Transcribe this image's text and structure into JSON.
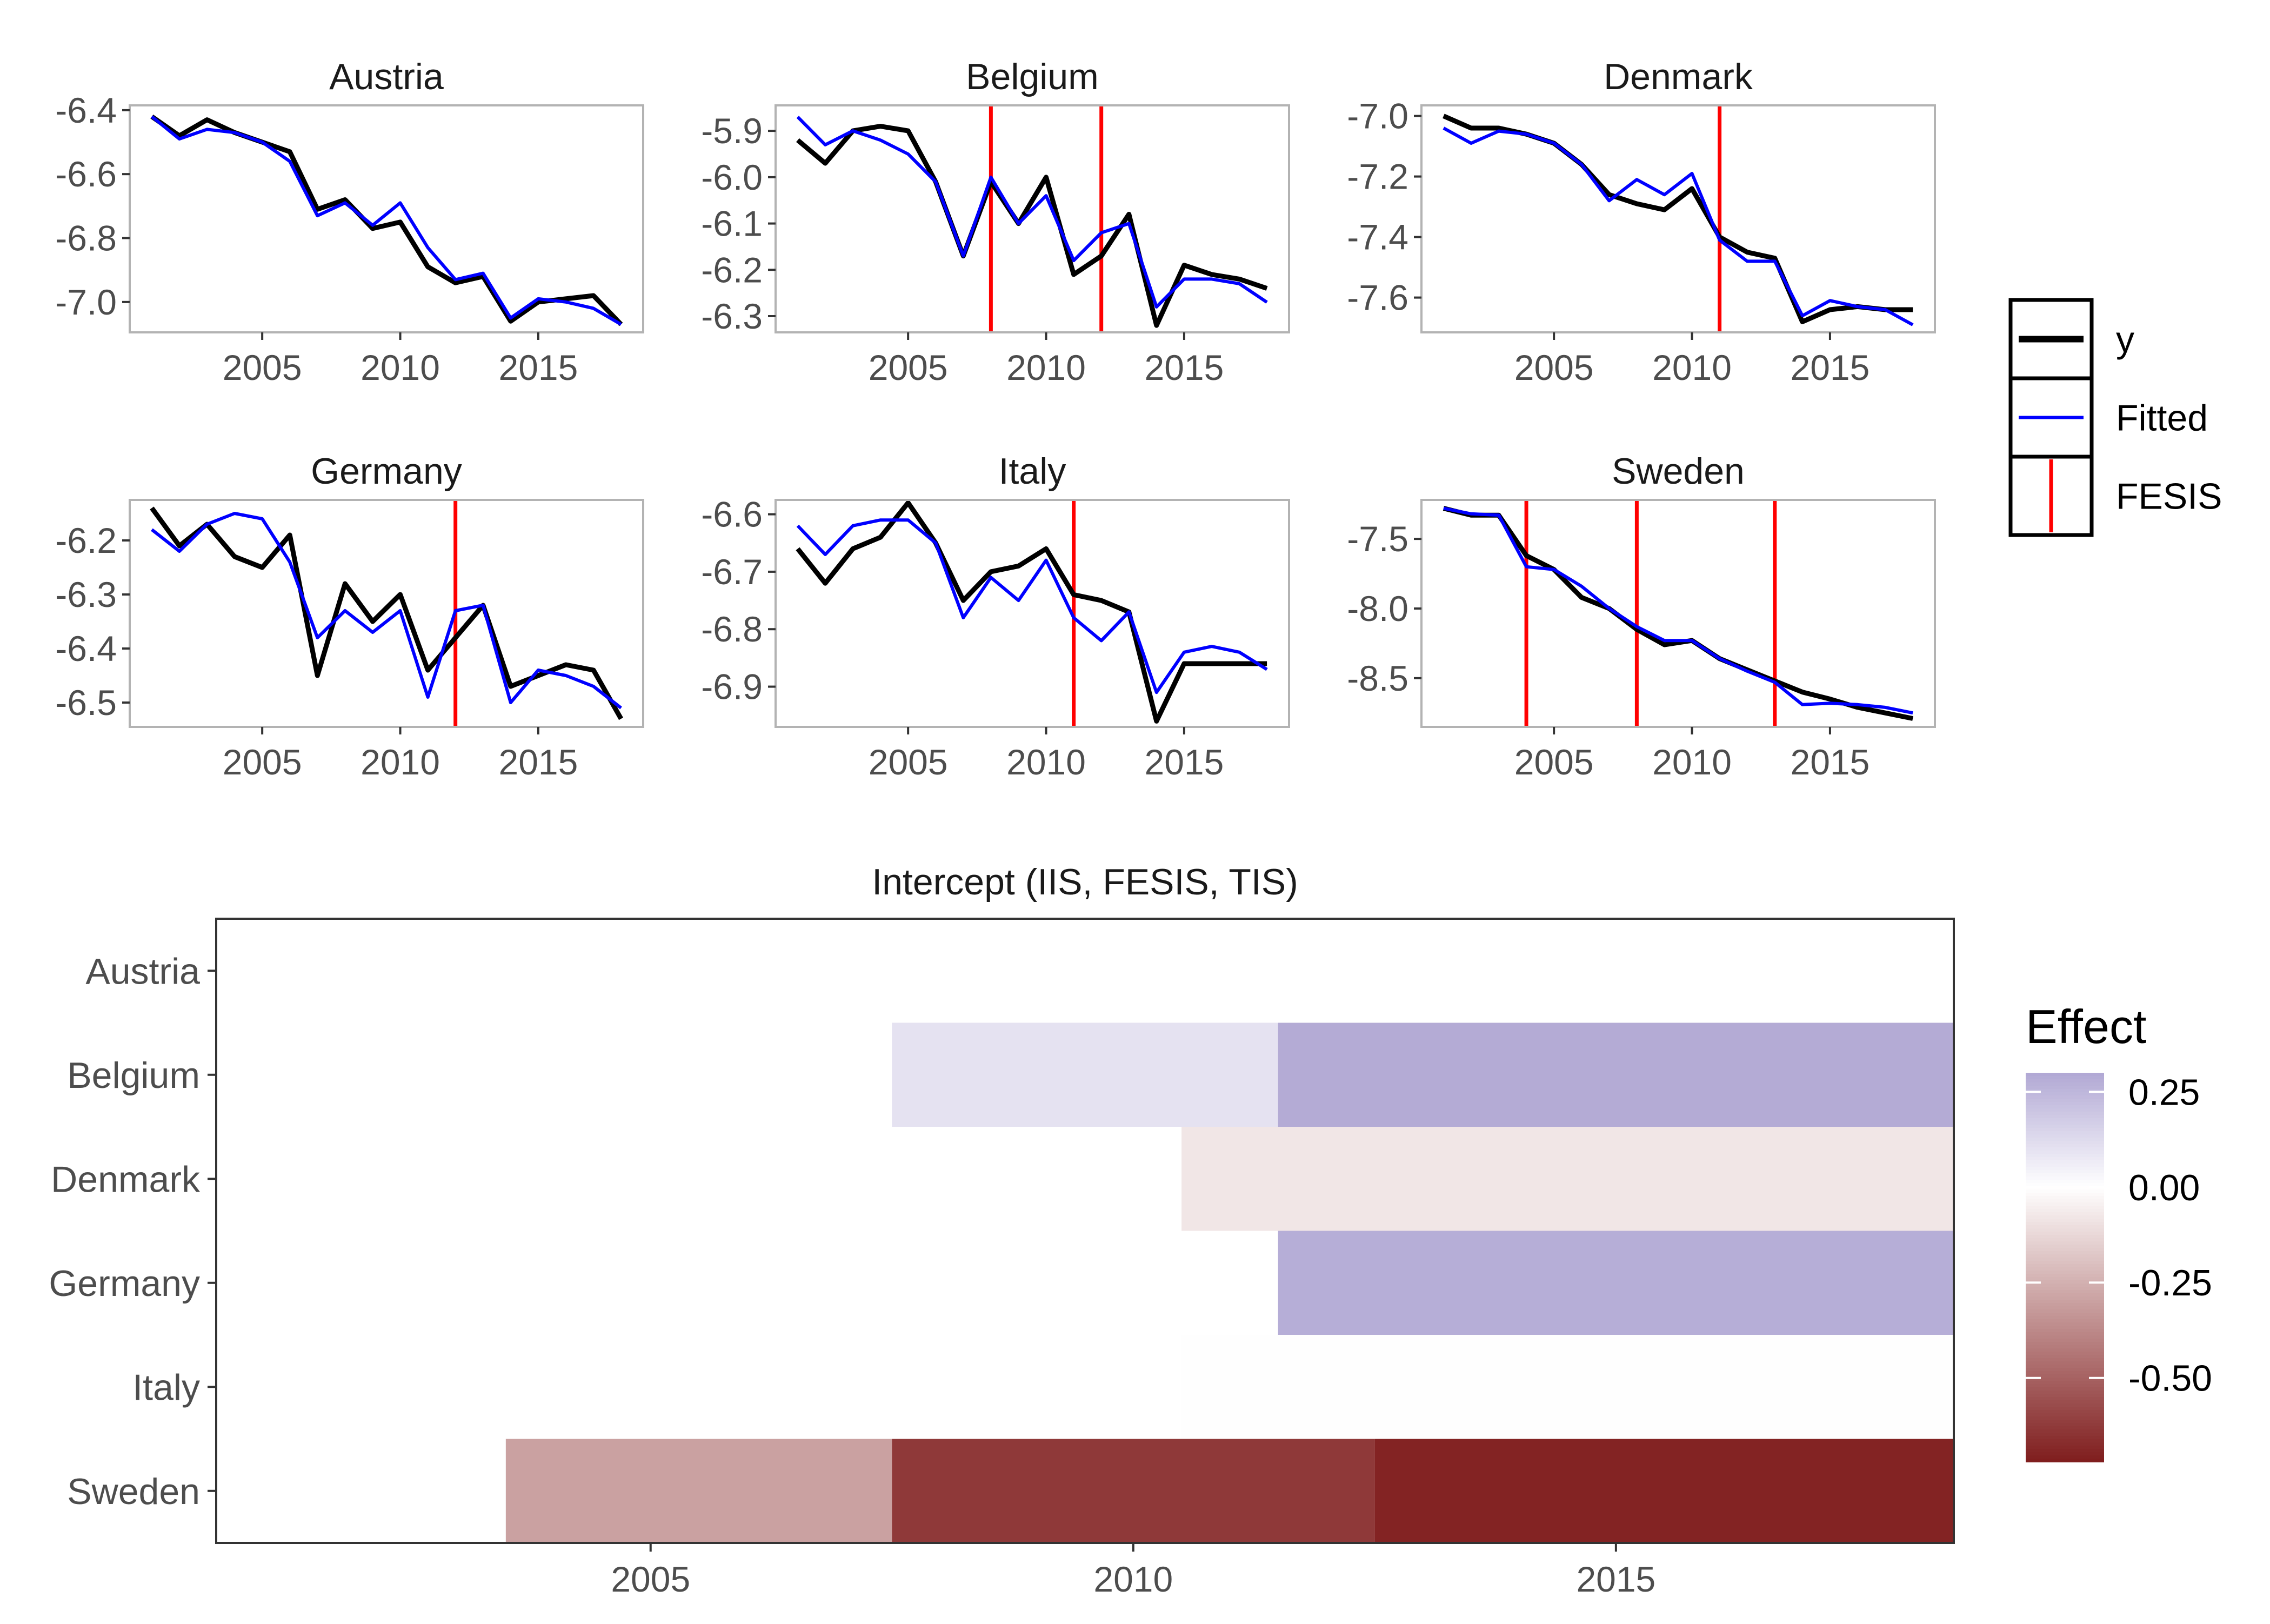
{
  "chart_data": [
    {
      "type": "line",
      "title": "Austria",
      "xticks": [
        2005,
        2010,
        2015
      ],
      "yticks": [
        -6.4,
        -6.6,
        -6.8,
        -7.0
      ],
      "ytick_labels": [
        "-6.4",
        "-6.6",
        "-6.8",
        "-7.0"
      ],
      "xlim": [
        2000.2,
        2018.8
      ],
      "ylim": [
        -7.095,
        -6.385
      ],
      "fesis": [],
      "series": [
        {
          "name": "y",
          "color": "#000000",
          "x": [
            2001,
            2002,
            2003,
            2004,
            2005,
            2006,
            2007,
            2008,
            2009,
            2010,
            2011,
            2012,
            2013,
            2014,
            2015,
            2016,
            2017,
            2018
          ],
          "values": [
            -6.42,
            -6.48,
            -6.43,
            -6.47,
            -6.5,
            -6.53,
            -6.71,
            -6.68,
            -6.77,
            -6.75,
            -6.89,
            -6.94,
            -6.92,
            -7.06,
            -7.0,
            -6.99,
            -6.98,
            -7.07
          ]
        },
        {
          "name": "Fitted",
          "color": "#0000ff",
          "x": [
            2001,
            2002,
            2003,
            2004,
            2005,
            2006,
            2007,
            2008,
            2009,
            2010,
            2011,
            2012,
            2013,
            2014,
            2015,
            2016,
            2017,
            2018
          ],
          "values": [
            -6.42,
            -6.49,
            -6.46,
            -6.47,
            -6.5,
            -6.56,
            -6.73,
            -6.69,
            -6.76,
            -6.69,
            -6.83,
            -6.93,
            -6.91,
            -7.05,
            -6.99,
            -7.0,
            -7.02,
            -7.07
          ]
        }
      ]
    },
    {
      "type": "line",
      "title": "Belgium",
      "xticks": [
        2005,
        2010,
        2015
      ],
      "yticks": [
        -5.9,
        -6.0,
        -6.1,
        -6.2,
        -6.3
      ],
      "ytick_labels": [
        "-5.9",
        "-6.0",
        "-6.1",
        "-6.2",
        "-6.3"
      ],
      "xlim": [
        2000.2,
        2018.8
      ],
      "ylim": [
        -6.335,
        -5.845
      ],
      "fesis": [
        2008,
        2012
      ],
      "series": [
        {
          "name": "y",
          "color": "#000000",
          "x": [
            2001,
            2002,
            2003,
            2004,
            2005,
            2006,
            2007,
            2008,
            2009,
            2010,
            2011,
            2012,
            2013,
            2014,
            2015,
            2016,
            2017,
            2018
          ],
          "values": [
            -5.92,
            -5.97,
            -5.9,
            -5.89,
            -5.9,
            -6.01,
            -6.17,
            -6.01,
            -6.1,
            -6.0,
            -6.21,
            -6.17,
            -6.08,
            -6.32,
            -6.19,
            -6.21,
            -6.22,
            -6.24
          ]
        },
        {
          "name": "Fitted",
          "color": "#0000ff",
          "x": [
            2001,
            2002,
            2003,
            2004,
            2005,
            2006,
            2007,
            2008,
            2009,
            2010,
            2011,
            2012,
            2013,
            2014,
            2015,
            2016,
            2017,
            2018
          ],
          "values": [
            -5.87,
            -5.93,
            -5.9,
            -5.92,
            -5.95,
            -6.01,
            -6.17,
            -6.0,
            -6.1,
            -6.04,
            -6.18,
            -6.12,
            -6.1,
            -6.28,
            -6.22,
            -6.22,
            -6.23,
            -6.27
          ]
        }
      ]
    },
    {
      "type": "line",
      "title": "Denmark",
      "xticks": [
        2005,
        2010,
        2015
      ],
      "yticks": [
        -7.0,
        -7.2,
        -7.4,
        -7.6
      ],
      "ytick_labels": [
        "-7.0",
        "-7.2",
        "-7.4",
        "-7.6"
      ],
      "xlim": [
        2000.2,
        2018.8
      ],
      "ylim": [
        -7.715,
        -6.965
      ],
      "fesis": [
        2011
      ],
      "series": [
        {
          "name": "y",
          "color": "#000000",
          "x": [
            2001,
            2002,
            2003,
            2004,
            2005,
            2006,
            2007,
            2008,
            2009,
            2010,
            2011,
            2012,
            2013,
            2014,
            2015,
            2016,
            2017,
            2018
          ],
          "values": [
            -7.0,
            -7.04,
            -7.04,
            -7.06,
            -7.09,
            -7.16,
            -7.26,
            -7.29,
            -7.31,
            -7.24,
            -7.4,
            -7.45,
            -7.47,
            -7.68,
            -7.64,
            -7.63,
            -7.64,
            -7.64
          ]
        },
        {
          "name": "Fitted",
          "color": "#0000ff",
          "x": [
            2001,
            2002,
            2003,
            2004,
            2005,
            2006,
            2007,
            2008,
            2009,
            2010,
            2011,
            2012,
            2013,
            2014,
            2015,
            2016,
            2017,
            2018
          ],
          "values": [
            -7.04,
            -7.09,
            -7.05,
            -7.06,
            -7.09,
            -7.16,
            -7.28,
            -7.21,
            -7.26,
            -7.19,
            -7.41,
            -7.48,
            -7.48,
            -7.66,
            -7.61,
            -7.63,
            -7.64,
            -7.69
          ]
        }
      ]
    },
    {
      "type": "line",
      "title": "Germany",
      "xticks": [
        2005,
        2010,
        2015
      ],
      "yticks": [
        -6.2,
        -6.3,
        -6.4,
        -6.5
      ],
      "ytick_labels": [
        "-6.2",
        "-6.3",
        "-6.4",
        "-6.5"
      ],
      "xlim": [
        2000.2,
        2018.8
      ],
      "ylim": [
        -6.545,
        -6.125
      ],
      "fesis": [
        2012
      ],
      "series": [
        {
          "name": "y",
          "color": "#000000",
          "x": [
            2001,
            2002,
            2003,
            2004,
            2005,
            2006,
            2007,
            2008,
            2009,
            2010,
            2011,
            2012,
            2013,
            2014,
            2015,
            2016,
            2017,
            2018
          ],
          "values": [
            -6.14,
            -6.21,
            -6.17,
            -6.23,
            -6.25,
            -6.19,
            -6.45,
            -6.28,
            -6.35,
            -6.3,
            -6.44,
            -6.38,
            -6.32,
            -6.47,
            -6.45,
            -6.43,
            -6.44,
            -6.53
          ]
        },
        {
          "name": "Fitted",
          "color": "#0000ff",
          "x": [
            2001,
            2002,
            2003,
            2004,
            2005,
            2006,
            2007,
            2008,
            2009,
            2010,
            2011,
            2012,
            2013,
            2014,
            2015,
            2016,
            2017,
            2018
          ],
          "values": [
            -6.18,
            -6.22,
            -6.17,
            -6.15,
            -6.16,
            -6.24,
            -6.38,
            -6.33,
            -6.37,
            -6.33,
            -6.49,
            -6.33,
            -6.32,
            -6.5,
            -6.44,
            -6.45,
            -6.47,
            -6.51
          ]
        }
      ]
    },
    {
      "type": "line",
      "title": "Italy",
      "xticks": [
        2005,
        2010,
        2015
      ],
      "yticks": [
        -6.6,
        -6.7,
        -6.8,
        -6.9
      ],
      "ytick_labels": [
        "-6.6",
        "-6.7",
        "-6.8",
        "-6.9"
      ],
      "xlim": [
        2000.2,
        2018.8
      ],
      "ylim": [
        -6.97,
        -6.575
      ],
      "fesis": [
        2011
      ],
      "series": [
        {
          "name": "y",
          "color": "#000000",
          "x": [
            2001,
            2002,
            2003,
            2004,
            2005,
            2006,
            2007,
            2008,
            2009,
            2010,
            2011,
            2012,
            2013,
            2014,
            2015,
            2016,
            2017,
            2018
          ],
          "values": [
            -6.66,
            -6.72,
            -6.66,
            -6.64,
            -6.58,
            -6.65,
            -6.75,
            -6.7,
            -6.69,
            -6.66,
            -6.74,
            -6.75,
            -6.77,
            -6.96,
            -6.86,
            -6.86,
            -6.86,
            -6.86
          ]
        },
        {
          "name": "Fitted",
          "color": "#0000ff",
          "x": [
            2001,
            2002,
            2003,
            2004,
            2005,
            2006,
            2007,
            2008,
            2009,
            2010,
            2011,
            2012,
            2013,
            2014,
            2015,
            2016,
            2017,
            2018
          ],
          "values": [
            -6.62,
            -6.67,
            -6.62,
            -6.61,
            -6.61,
            -6.65,
            -6.78,
            -6.71,
            -6.75,
            -6.68,
            -6.78,
            -6.82,
            -6.77,
            -6.91,
            -6.84,
            -6.83,
            -6.84,
            -6.87
          ]
        }
      ]
    },
    {
      "type": "line",
      "title": "Sweden",
      "xticks": [
        2005,
        2010,
        2015
      ],
      "yticks": [
        -7.5,
        -8.0,
        -8.5
      ],
      "ytick_labels": [
        "-7.5",
        "-8.0",
        "-8.5"
      ],
      "xlim": [
        2000.2,
        2018.8
      ],
      "ylim": [
        -8.85,
        -7.22
      ],
      "fesis": [
        2004,
        2008,
        2013
      ],
      "series": [
        {
          "name": "y",
          "color": "#000000",
          "x": [
            2001,
            2002,
            2003,
            2004,
            2005,
            2006,
            2007,
            2008,
            2009,
            2010,
            2011,
            2012,
            2013,
            2014,
            2015,
            2016,
            2017,
            2018
          ],
          "values": [
            -7.28,
            -7.33,
            -7.33,
            -7.62,
            -7.72,
            -7.92,
            -8.0,
            -8.15,
            -8.26,
            -8.23,
            -8.36,
            -8.44,
            -8.52,
            -8.6,
            -8.65,
            -8.71,
            -8.75,
            -8.79
          ]
        },
        {
          "name": "Fitted",
          "color": "#0000ff",
          "x": [
            2001,
            2002,
            2003,
            2004,
            2005,
            2006,
            2007,
            2008,
            2009,
            2010,
            2011,
            2012,
            2013,
            2014,
            2015,
            2016,
            2017,
            2018
          ],
          "values": [
            -7.28,
            -7.32,
            -7.33,
            -7.7,
            -7.72,
            -7.84,
            -8.0,
            -8.13,
            -8.23,
            -8.23,
            -8.36,
            -8.45,
            -8.53,
            -8.69,
            -8.68,
            -8.69,
            -8.71,
            -8.75
          ]
        }
      ]
    },
    {
      "type": "heatmap",
      "title": "Intercept (IIS, FESIS, TIS)",
      "rows": [
        "Austria",
        "Belgium",
        "Denmark",
        "Germany",
        "Italy",
        "Sweden"
      ],
      "xticks": [
        2005,
        2010,
        2015
      ],
      "xlim": [
        2000.5,
        2018.5
      ],
      "cells": [
        {
          "row": "Belgium",
          "from": 2007.5,
          "to": 2011.5,
          "value": 0.1
        },
        {
          "row": "Belgium",
          "from": 2011.5,
          "to": 2018.5,
          "value": 0.29
        },
        {
          "row": "Denmark",
          "from": 2010.5,
          "to": 2018.5,
          "value": -0.08
        },
        {
          "row": "Germany",
          "from": 2011.5,
          "to": 2018.5,
          "value": 0.28
        },
        {
          "row": "Italy",
          "from": 2010.5,
          "to": 2018.5,
          "value": 0.005
        },
        {
          "row": "Sweden",
          "from": 2003.5,
          "to": 2007.5,
          "value": -0.3
        },
        {
          "row": "Sweden",
          "from": 2007.5,
          "to": 2012.5,
          "value": -0.63
        },
        {
          "row": "Sweden",
          "from": 2012.5,
          "to": 2018.5,
          "value": -0.7
        }
      ],
      "colorbar": {
        "title": "Effect",
        "range": [
          -0.72,
          0.3
        ],
        "ticks": [
          0.25,
          0.0,
          -0.25,
          -0.5
        ],
        "tick_labels": [
          "0.25",
          "0.00",
          "-0.25",
          "-0.50"
        ],
        "low_color": "#7f1d1d",
        "mid_color": "#ffffff",
        "high_color": "#b1a8d4"
      }
    }
  ],
  "legend": {
    "items": [
      {
        "label": "y",
        "kind": "line-thick",
        "color": "#000000"
      },
      {
        "label": "Fitted",
        "kind": "line-thin",
        "color": "#0000ff"
      },
      {
        "label": "FESIS",
        "kind": "vline",
        "color": "#ff0000"
      }
    ]
  },
  "colors": {
    "y": "#000000",
    "fitted": "#0000ff",
    "fesis": "#ff0000",
    "panel_border": "#b3b3b3"
  }
}
